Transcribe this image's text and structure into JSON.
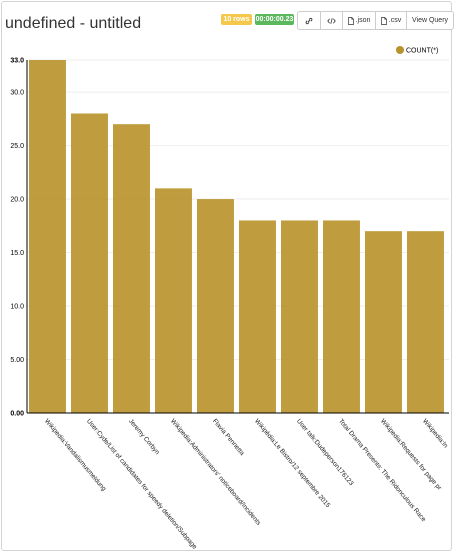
{
  "header": {
    "title": "undefined - untitled",
    "row_count_label": "10 rows",
    "timer_label": "00:00:00.23",
    "row_badge_color": "#f5c84c",
    "timer_badge_color": "#5cb85c"
  },
  "toolbar": {
    "link_icon": "link-icon",
    "embed_icon": "code-icon",
    "json_label": ".json",
    "json_icon": "file-icon",
    "csv_label": ".csv",
    "csv_icon": "file-icon",
    "view_query_label": "View Query"
  },
  "chart_data": {
    "type": "bar",
    "legend": "COUNT(*)",
    "legend_position": "top-right",
    "bar_color": "#b8922a",
    "grid": true,
    "ylim": [
      0,
      33
    ],
    "yticks": [
      "0.00",
      "5.00",
      "10.0",
      "15.0",
      "20.0",
      "25.0",
      "30.0",
      "33.0"
    ],
    "ytick_values": [
      0,
      5,
      10,
      15,
      20,
      25,
      30,
      33
    ],
    "categories": [
      "Wikipedia:Vandalismusmeldung",
      "User:Cyde/List of candidates for speedy deletion/Subpage",
      "Jeremy Corbyn",
      "Wikipedia:Administrators' noticeboard/Incidents",
      "Flavia Pennetta",
      "Wikipédia:Le Bistro/12 septembre 2015",
      "User talk:Dudeperson176123",
      "Total Drama Presents: The Ridonculous Race",
      "Wikipedia:Requests for page pr",
      "Wikipedia:In"
    ],
    "values": [
      33,
      28,
      27,
      21,
      20,
      18,
      18,
      18,
      17,
      17
    ]
  }
}
